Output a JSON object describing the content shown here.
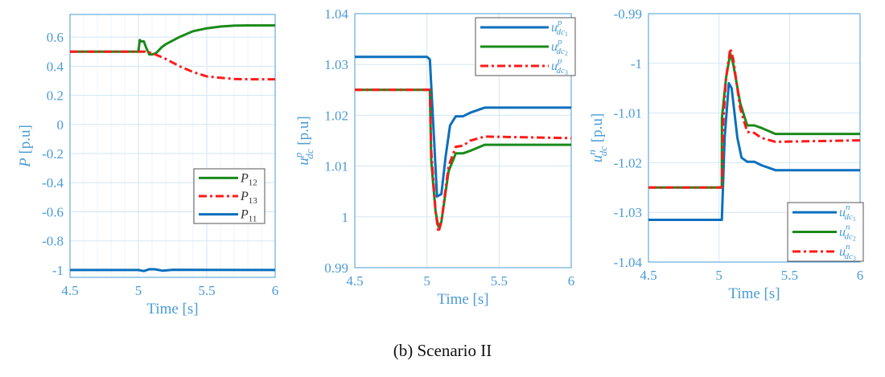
{
  "caption": "(b) Scenario II",
  "colors": {
    "axis": "#4a9bd6",
    "grid": "#d3e6f4",
    "blue": "#0c6fbd",
    "green": "#1a8a1a",
    "red": "#ff1a1a",
    "legend_border": "#555555"
  },
  "chart_data": [
    {
      "type": "line",
      "xlabel": "Time [s]",
      "ylabel": {
        "base": "P",
        "sup": "",
        "sub": "",
        "unit": " [p.u]"
      },
      "xlim": [
        4.5,
        6
      ],
      "ylim": [
        -1.05,
        0.755
      ],
      "xticks": [
        4.5,
        5,
        5.5,
        6
      ],
      "xtick_labels": [
        "4.5",
        "5",
        "5.5",
        "6"
      ],
      "yticks": [
        -1,
        -0.8,
        -0.6,
        -0.4,
        -0.2,
        0,
        0.2,
        0.4,
        0.6
      ],
      "ytick_labels": [
        "-1",
        "-0.8",
        "-0.6",
        "-0.4",
        "-0.2",
        "0",
        "0.2",
        "0.4",
        "0.6"
      ],
      "minor_x_grid": true,
      "grid": true,
      "legend_position": "lower-right",
      "series": [
        {
          "name": "P12",
          "label": {
            "base": "P",
            "sup": "",
            "sub": "12",
            "subsub": ""
          },
          "color": "green",
          "style": "solid",
          "x": [
            4.5,
            5.0,
            5.01,
            5.02,
            5.04,
            5.06,
            5.08,
            5.1,
            5.13,
            5.17,
            5.2,
            5.3,
            5.4,
            5.5,
            5.6,
            5.7,
            5.8,
            6.0
          ],
          "y": [
            0.5,
            0.5,
            0.58,
            0.57,
            0.57,
            0.52,
            0.48,
            0.48,
            0.49,
            0.53,
            0.55,
            0.6,
            0.64,
            0.66,
            0.672,
            0.678,
            0.68,
            0.68
          ]
        },
        {
          "name": "P13",
          "label": {
            "base": "P",
            "sup": "",
            "sub": "13",
            "subsub": ""
          },
          "color": "red",
          "style": "dashdot",
          "x": [
            4.5,
            5.0,
            5.05,
            5.1,
            5.2,
            5.3,
            5.4,
            5.5,
            5.6,
            5.7,
            5.8,
            6.0
          ],
          "y": [
            0.5,
            0.5,
            0.5,
            0.49,
            0.45,
            0.4,
            0.36,
            0.33,
            0.32,
            0.312,
            0.31,
            0.31
          ]
        },
        {
          "name": "P11",
          "label": {
            "base": "P",
            "sup": "",
            "sub": "11",
            "subsub": ""
          },
          "color": "blue",
          "style": "solid",
          "x": [
            4.5,
            5.0,
            5.04,
            5.08,
            5.12,
            5.18,
            5.25,
            6.0
          ],
          "y": [
            -1.0,
            -1.0,
            -1.007,
            -0.994,
            -0.995,
            -1.005,
            -0.998,
            -1.0
          ]
        }
      ]
    },
    {
      "type": "line",
      "xlabel": "Time [s]",
      "ylabel": {
        "base": "u",
        "sup": "p",
        "sub": "dc",
        "unit": " [p.u]"
      },
      "xlim": [
        4.5,
        6
      ],
      "ylim": [
        0.99,
        1.04
      ],
      "xticks": [
        4.5,
        5,
        5.5,
        6
      ],
      "xtick_labels": [
        "4.5",
        "5",
        "5.5",
        "6"
      ],
      "yticks": [
        0.99,
        1.0,
        1.01,
        1.02,
        1.03,
        1.04
      ],
      "ytick_labels": [
        "0.99",
        "1",
        "1.01",
        "1.02",
        "1.03",
        "1.04"
      ],
      "minor_x_grid": false,
      "grid": true,
      "legend_position": "top-right",
      "series": [
        {
          "name": "u^p_dc1",
          "label": {
            "base": "u",
            "sup": "p",
            "sub": "dc",
            "subsub": "1"
          },
          "color": "blue",
          "style": "solid",
          "x": [
            4.5,
            5.0,
            5.02,
            5.05,
            5.07,
            5.1,
            5.13,
            5.16,
            5.2,
            5.25,
            5.3,
            5.4,
            5.5,
            6.0
          ],
          "y": [
            1.0315,
            1.0315,
            1.031,
            1.015,
            1.004,
            1.0045,
            1.012,
            1.018,
            1.0198,
            1.0198,
            1.0205,
            1.0215,
            1.0215,
            1.0215
          ]
        },
        {
          "name": "u^p_dc2",
          "label": {
            "base": "u",
            "sup": "p",
            "sub": "dc",
            "subsub": "2"
          },
          "color": "green",
          "style": "solid",
          "x": [
            4.5,
            5.02,
            5.03,
            5.06,
            5.08,
            5.1,
            5.15,
            5.2,
            5.25,
            5.3,
            5.4,
            6.0
          ],
          "y": [
            1.025,
            1.025,
            1.011,
            1.001,
            0.998,
            0.999,
            1.009,
            1.0125,
            1.0125,
            1.013,
            1.0142,
            1.0142
          ]
        },
        {
          "name": "u^p_dc3",
          "label": {
            "base": "u",
            "sup": "p",
            "sub": "dc",
            "subsub": "3"
          },
          "color": "red",
          "style": "dashdot",
          "x": [
            4.5,
            5.02,
            5.03,
            5.06,
            5.08,
            5.1,
            5.15,
            5.2,
            5.25,
            5.3,
            5.4,
            6.0
          ],
          "y": [
            1.025,
            1.025,
            1.013,
            1.001,
            0.997,
            0.999,
            1.01,
            1.0138,
            1.014,
            1.015,
            1.0158,
            1.0155
          ]
        }
      ]
    },
    {
      "type": "line",
      "xlabel": "Time [s]",
      "ylabel": {
        "base": "u",
        "sup": "n",
        "sub": "dc",
        "unit": " [p.u]"
      },
      "xlim": [
        4.5,
        6
      ],
      "ylim": [
        -1.04,
        -0.99
      ],
      "xticks": [
        4.5,
        5,
        5.5,
        6
      ],
      "xtick_labels": [
        "4.5",
        "5",
        "5.5",
        "6"
      ],
      "yticks": [
        -1.04,
        -1.03,
        -1.02,
        -1.01,
        -1.0,
        -0.99
      ],
      "ytick_labels": [
        "-1.04",
        "-1.03",
        "-1.02",
        "-1.01",
        "-1",
        "-0.99"
      ],
      "minor_x_grid": false,
      "grid": true,
      "legend_position": "bottom-right",
      "series": [
        {
          "name": "u^n_dc1",
          "label": {
            "base": "u",
            "sup": "n",
            "sub": "dc",
            "subsub": "1"
          },
          "color": "blue",
          "style": "solid",
          "x": [
            4.5,
            5.02,
            5.04,
            5.07,
            5.09,
            5.13,
            5.16,
            5.2,
            5.25,
            5.3,
            5.4,
            6.0
          ],
          "y": [
            -1.0315,
            -1.0315,
            -1.015,
            -1.004,
            -1.005,
            -1.015,
            -1.019,
            -1.0198,
            -1.0198,
            -1.0205,
            -1.0215,
            -1.0215
          ]
        },
        {
          "name": "u^n_dc2",
          "label": {
            "base": "u",
            "sup": "n",
            "sub": "dc",
            "subsub": "2"
          },
          "color": "green",
          "style": "solid",
          "x": [
            4.5,
            5.02,
            5.021,
            5.05,
            5.08,
            5.1,
            5.15,
            5.2,
            5.25,
            5.3,
            5.4,
            6.0
          ],
          "y": [
            -1.025,
            -1.025,
            -1.011,
            -1.003,
            -0.998,
            -1.0,
            -1.008,
            -1.0125,
            -1.0125,
            -1.013,
            -1.0142,
            -1.0142
          ]
        },
        {
          "name": "u^n_dc3",
          "label": {
            "base": "u",
            "sup": "n",
            "sub": "dc",
            "subsub": "3"
          },
          "color": "red",
          "style": "dashdot",
          "x": [
            4.5,
            5.02,
            5.03,
            5.05,
            5.08,
            5.1,
            5.15,
            5.2,
            5.25,
            5.3,
            5.4,
            6.0
          ],
          "y": [
            -1.025,
            -1.025,
            -1.012,
            -1.003,
            -0.997,
            -0.999,
            -1.009,
            -1.0138,
            -1.014,
            -1.015,
            -1.0158,
            -1.0155
          ]
        }
      ]
    }
  ]
}
